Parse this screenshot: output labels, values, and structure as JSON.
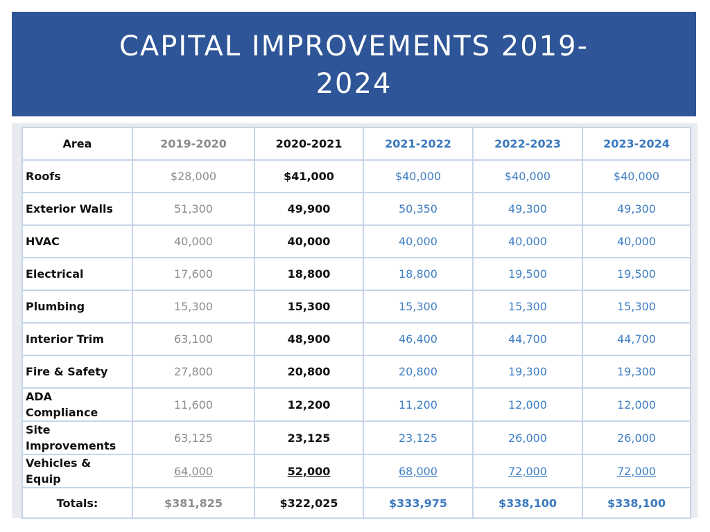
{
  "title": {
    "line1": "CAPITAL IMPROVEMENTS  2019-",
    "line2": "2024"
  },
  "colors": {
    "title_band": "#2e5597",
    "title_text": "#ffffff",
    "grid_line": "#c6d5e8",
    "past_year_text": "#8a8a8a",
    "current_year_text": "#111111",
    "future_year_text": "#3f7fc4"
  },
  "table": {
    "headers": [
      "Area",
      "2019-2020",
      "2020-2021",
      "2021-2022",
      "2022-2023",
      "2023-2024"
    ],
    "rows": [
      {
        "area": [
          "Roofs"
        ],
        "values": [
          "$28,000",
          "$41,000",
          "$40,000",
          "$40,000",
          "$40,000"
        ]
      },
      {
        "area": [
          "Exterior Walls"
        ],
        "values": [
          "51,300",
          "49,900",
          "50,350",
          "49,300",
          "49,300"
        ]
      },
      {
        "area": [
          "HVAC"
        ],
        "values": [
          "40,000",
          "40,000",
          "40,000",
          "40,000",
          "40,000"
        ]
      },
      {
        "area": [
          "Electrical"
        ],
        "values": [
          "17,600",
          "18,800",
          "18,800",
          "19,500",
          "19,500"
        ]
      },
      {
        "area": [
          "Plumbing"
        ],
        "values": [
          "15,300",
          "15,300",
          "15,300",
          "15,300",
          "15,300"
        ]
      },
      {
        "area": [
          "Interior Trim"
        ],
        "values": [
          "63,100",
          "48,900",
          "46,400",
          "44,700",
          "44,700"
        ]
      },
      {
        "area": [
          "Fire & Safety"
        ],
        "values": [
          "27,800",
          "20,800",
          "20,800",
          "19,300",
          "19,300"
        ]
      },
      {
        "area": [
          "ADA",
          "Compliance"
        ],
        "values": [
          "11,600",
          "12,200",
          "11,200",
          "12,000",
          "12,000"
        ]
      },
      {
        "area": [
          "Site",
          "Improvements"
        ],
        "values": [
          "63,125",
          "23,125",
          "23,125",
          "26,000",
          "26,000"
        ]
      },
      {
        "area": [
          "Vehicles &",
          "Equip"
        ],
        "values": [
          "64,000",
          "52,000",
          "68,000",
          "72,000",
          "72,000"
        ]
      }
    ],
    "totals": {
      "label": "Totals:",
      "values": [
        "$381,825",
        "$322,025",
        "$333,975",
        "$338,100",
        "$338,100"
      ]
    }
  }
}
